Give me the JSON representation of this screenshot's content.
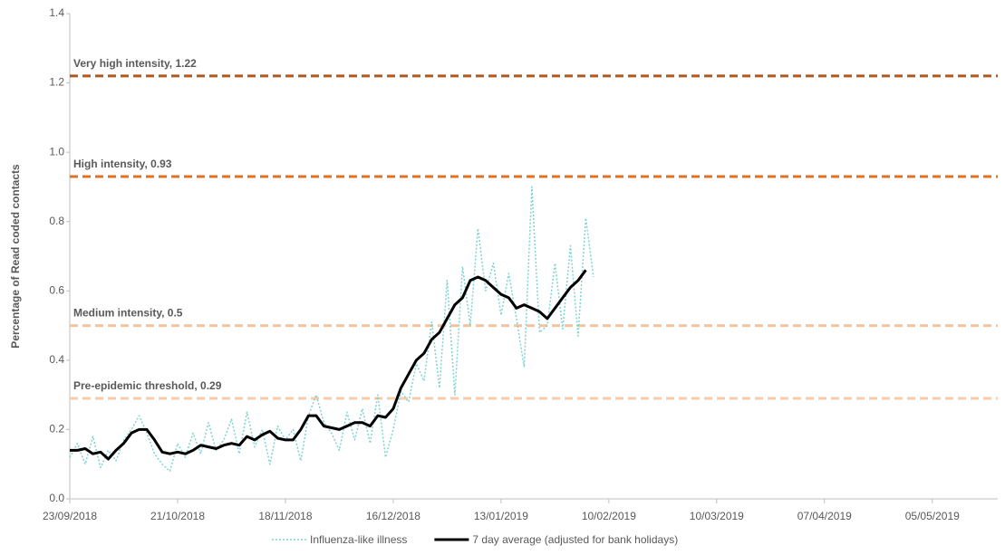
{
  "chart_data": {
    "type": "line",
    "y_label": "Percentage of Read coded contacts",
    "x": [
      "23/09/2018",
      "25/09/2018",
      "27/09/2018",
      "29/09/2018",
      "01/10/2018",
      "03/10/2018",
      "05/10/2018",
      "07/10/2018",
      "09/10/2018",
      "11/10/2018",
      "13/10/2018",
      "15/10/2018",
      "17/10/2018",
      "19/10/2018",
      "21/10/2018",
      "23/10/2018",
      "25/10/2018",
      "27/10/2018",
      "29/10/2018",
      "31/10/2018",
      "02/11/2018",
      "04/11/2018",
      "06/11/2018",
      "08/11/2018",
      "10/11/2018",
      "12/11/2018",
      "14/11/2018",
      "16/11/2018",
      "18/11/2018",
      "20/11/2018",
      "22/11/2018",
      "24/11/2018",
      "26/11/2018",
      "28/11/2018",
      "30/11/2018",
      "02/12/2018",
      "04/12/2018",
      "06/12/2018",
      "08/12/2018",
      "10/12/2018",
      "12/12/2018",
      "14/12/2018",
      "16/12/2018",
      "18/12/2018",
      "20/12/2018",
      "22/12/2018",
      "24/12/2018",
      "26/12/2018",
      "28/12/2018",
      "30/12/2018",
      "01/01/2019",
      "03/01/2019",
      "05/01/2019",
      "07/01/2019",
      "09/01/2019",
      "11/01/2019",
      "13/01/2019",
      "15/01/2019",
      "17/01/2019",
      "19/01/2019",
      "21/01/2019",
      "23/01/2019",
      "25/01/2019",
      "27/01/2019",
      "29/01/2019",
      "31/01/2019",
      "02/02/2019",
      "04/02/2019",
      "06/02/2019"
    ],
    "series": [
      {
        "name": "Influenza-like illness",
        "color": "#7fd3d1",
        "style": "dotted",
        "values": [
          0.12,
          0.16,
          0.1,
          0.18,
          0.09,
          0.14,
          0.11,
          0.17,
          0.2,
          0.24,
          0.19,
          0.13,
          0.1,
          0.08,
          0.16,
          0.12,
          0.19,
          0.13,
          0.22,
          0.14,
          0.17,
          0.23,
          0.13,
          0.25,
          0.15,
          0.2,
          0.1,
          0.21,
          0.17,
          0.2,
          0.11,
          0.24,
          0.3,
          0.22,
          0.19,
          0.14,
          0.25,
          0.17,
          0.26,
          0.16,
          0.3,
          0.12,
          0.2,
          0.31,
          0.28,
          0.39,
          0.34,
          0.51,
          0.32,
          0.63,
          0.3,
          0.67,
          0.5,
          0.78,
          0.6,
          0.68,
          0.53,
          0.65,
          0.52,
          0.38,
          0.9,
          0.48,
          0.5,
          0.68,
          0.49,
          0.73,
          0.47,
          0.81,
          0.64
        ]
      },
      {
        "name": "7 day average (adjusted for bank holidays)",
        "color": "#000000",
        "style": "solid",
        "values": [
          0.14,
          0.14,
          0.145,
          0.13,
          0.135,
          0.115,
          0.14,
          0.16,
          0.19,
          0.2,
          0.2,
          0.17,
          0.135,
          0.13,
          0.135,
          0.13,
          0.14,
          0.155,
          0.15,
          0.145,
          0.155,
          0.16,
          0.155,
          0.18,
          0.17,
          0.185,
          0.195,
          0.175,
          0.17,
          0.17,
          0.2,
          0.24,
          0.24,
          0.21,
          0.205,
          0.2,
          0.21,
          0.22,
          0.22,
          0.21,
          0.24,
          0.235,
          0.26,
          0.32,
          0.36,
          0.4,
          0.42,
          0.46,
          0.48,
          0.52,
          0.56,
          0.58,
          0.63,
          0.64,
          0.63,
          0.61,
          0.59,
          0.58,
          0.55,
          0.56,
          0.55,
          0.54,
          0.52,
          0.55,
          0.58,
          0.61,
          0.63,
          0.66,
          null
        ]
      }
    ],
    "thresholds": [
      {
        "label": "Very high intensity, 1.22",
        "value": 1.22,
        "color": "#b5561a"
      },
      {
        "label": "High intensity, 0.93",
        "value": 0.93,
        "color": "#e46f1d"
      },
      {
        "label": "Medium intensity, 0.5",
        "value": 0.5,
        "color": "#f7c39c"
      },
      {
        "label": "Pre-epidemic threshold, 0.29",
        "value": 0.29,
        "color": "#f9cba8"
      }
    ],
    "xlim": [
      "23/09/2018",
      "22/05/2019"
    ],
    "xticks": [
      "23/09/2018",
      "21/10/2018",
      "18/11/2018",
      "16/12/2018",
      "13/01/2019",
      "10/02/2019",
      "10/03/2019",
      "07/04/2019",
      "05/05/2019"
    ],
    "ylim": [
      0,
      1.4
    ],
    "yticks": [
      {
        "value": 0,
        "label": "0.0"
      },
      0.2,
      0.4,
      0.6,
      0.8,
      {
        "value": 1,
        "label": "1.0"
      },
      1.2,
      1.4
    ],
    "grid": false,
    "legend": "bottom"
  }
}
